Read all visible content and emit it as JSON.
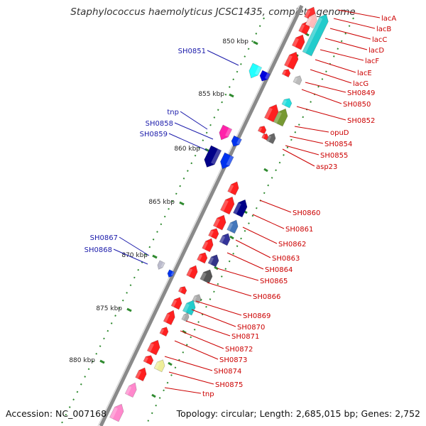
{
  "title": "Staphylococcus haemolyticus JCSC1435, complete genome",
  "footer": {
    "accession": "Accession: NC_007168",
    "summary": "Topology: circular; Length: 2,685,015 bp; Genes: 2,752"
  },
  "colors": {
    "backbone": "#8a8a8a",
    "tick": "#2f8a2f",
    "label_right": "#cc0000",
    "label_left": "#1a1aaa"
  },
  "ticks": [
    {
      "label": "850 kbp"
    },
    {
      "label": "855 kbp"
    },
    {
      "label": "860 kbp"
    },
    {
      "label": "865 kbp"
    },
    {
      "label": "870 kbp"
    },
    {
      "label": "875 kbp"
    },
    {
      "label": "880 kbp"
    }
  ],
  "genes_right": [
    {
      "label": "lacA"
    },
    {
      "label": "lacB"
    },
    {
      "label": "lacC"
    },
    {
      "label": "lacD"
    },
    {
      "label": "lacF"
    },
    {
      "label": "lacE"
    },
    {
      "label": "lacG"
    },
    {
      "label": "SH0849"
    },
    {
      "label": "SH0850"
    },
    {
      "label": "SH0852"
    },
    {
      "label": "opuD"
    },
    {
      "label": "SH0854"
    },
    {
      "label": "SH0855"
    },
    {
      "label": "asp23"
    },
    {
      "label": "SH0860"
    },
    {
      "label": "SH0861"
    },
    {
      "label": "SH0862"
    },
    {
      "label": "SH0863"
    },
    {
      "label": "SH0864"
    },
    {
      "label": "SH0865"
    },
    {
      "label": "SH0866"
    },
    {
      "label": "SH0869"
    },
    {
      "label": "SH0870"
    },
    {
      "label": "SH0871"
    },
    {
      "label": "SH0872"
    },
    {
      "label": "SH0873"
    },
    {
      "label": "SH0874"
    },
    {
      "label": "SH0875"
    },
    {
      "label": "tnp"
    }
  ],
  "genes_left": [
    {
      "label": "SH0851"
    },
    {
      "label": "tnp"
    },
    {
      "label": "SH0858"
    },
    {
      "label": "SH0859"
    },
    {
      "label": "SH0867"
    },
    {
      "label": "SH0868"
    }
  ]
}
